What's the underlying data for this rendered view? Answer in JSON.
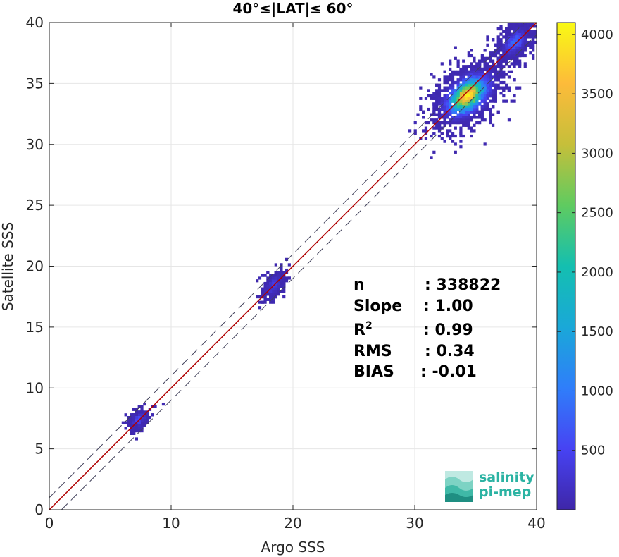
{
  "chart_data": {
    "type": "heatmap",
    "title": "40°≤|LAT|≤ 60°",
    "xlabel": "Argo SSS",
    "ylabel": "Satellite SSS",
    "xlim": [
      0,
      40
    ],
    "ylim": [
      0,
      40
    ],
    "xticks": [
      "0",
      "10",
      "20",
      "30",
      "40"
    ],
    "yticks": [
      "0",
      "5",
      "10",
      "15",
      "20",
      "25",
      "30",
      "35",
      "40"
    ],
    "grid": true,
    "colorbar": {
      "min": 0,
      "max": 4100,
      "ticks": [
        "500",
        "1000",
        "1500",
        "2000",
        "2500",
        "3000",
        "3500",
        "4000"
      ],
      "tick_values": [
        500,
        1000,
        1500,
        2000,
        2500,
        3000,
        3500,
        4000
      ]
    },
    "lines": [
      {
        "name": "1:1 line",
        "x": [
          0,
          40
        ],
        "y": [
          0,
          40
        ],
        "color": "#b00000",
        "style": "solid"
      },
      {
        "name": "upper bound",
        "x": [
          0,
          40
        ],
        "y": [
          1,
          41
        ],
        "color": "#40405a",
        "style": "dashed"
      },
      {
        "name": "lower bound",
        "x": [
          1,
          41
        ],
        "y": [
          0,
          40
        ],
        "color": "#40405a",
        "style": "dashed"
      }
    ],
    "clusters": [
      {
        "cx": 7.2,
        "cy": 7.3,
        "sx": 0.45,
        "sy": 0.45,
        "n": 260,
        "peak": 600
      },
      {
        "cx": 18.3,
        "cy": 18.3,
        "sx": 0.45,
        "sy": 0.65,
        "n": 300,
        "peak": 500
      },
      {
        "cx": 34.2,
        "cy": 33.9,
        "sx": 1.5,
        "sy": 1.4,
        "n": 1300,
        "peak": 4050
      },
      {
        "cx": 38.1,
        "cy": 38.3,
        "sx": 0.8,
        "sy": 0.9,
        "n": 550,
        "peak": 900
      }
    ],
    "stats": [
      {
        "label": "n",
        "value": ": 338822"
      },
      {
        "label": "Slope",
        "value": ": 1.00"
      },
      {
        "label": "R",
        "sup": "2",
        "value": ": 0.99"
      },
      {
        "label": "RMS",
        "value": ": 0.34"
      },
      {
        "label": "BIAS",
        "value": ": -0.01"
      }
    ],
    "colors": {
      "grid": "#e6e6e6",
      "axis": "#262626",
      "colormap": [
        "#3e26a8",
        "#4743f3",
        "#2f7efa",
        "#1aa8d8",
        "#14bfb0",
        "#5fcb60",
        "#c6bf3a",
        "#fdbb3a",
        "#f9fa14"
      ]
    }
  },
  "logo": {
    "line1": "salinity",
    "line2": "pi-mep",
    "icon": "waves-logo-icon",
    "color": "#2bb3a3"
  }
}
